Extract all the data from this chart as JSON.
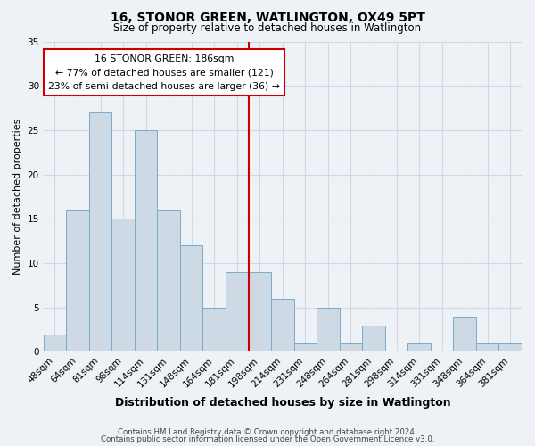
{
  "title": "16, STONOR GREEN, WATLINGTON, OX49 5PT",
  "subtitle": "Size of property relative to detached houses in Watlington",
  "xlabel": "Distribution of detached houses by size in Watlington",
  "ylabel": "Number of detached properties",
  "footer_line1": "Contains HM Land Registry data © Crown copyright and database right 2024.",
  "footer_line2": "Contains public sector information licensed under the Open Government Licence v3.0.",
  "bar_labels": [
    "48sqm",
    "64sqm",
    "81sqm",
    "98sqm",
    "114sqm",
    "131sqm",
    "148sqm",
    "164sqm",
    "181sqm",
    "198sqm",
    "214sqm",
    "231sqm",
    "248sqm",
    "264sqm",
    "281sqm",
    "298sqm",
    "314sqm",
    "331sqm",
    "348sqm",
    "364sqm",
    "381sqm"
  ],
  "bar_values": [
    2,
    16,
    27,
    15,
    25,
    16,
    12,
    5,
    9,
    9,
    6,
    1,
    5,
    1,
    3,
    0,
    1,
    0,
    4,
    1,
    1
  ],
  "bar_color": "#cdd9e5",
  "bar_edge_color": "#7aaac8",
  "ylim": [
    0,
    35
  ],
  "yticks": [
    0,
    5,
    10,
    15,
    20,
    25,
    30,
    35
  ],
  "property_line_x": 8.5,
  "property_line_color": "#cc0000",
  "annotation_box_text": "16 STONOR GREEN: 186sqm\n← 77% of detached houses are smaller (121)\n23% of semi-detached houses are larger (36) →",
  "annotation_box_edge_color": "#cc0000",
  "annotation_box_bg": "#ffffff",
  "grid_color": "#d0d8e4",
  "background_color": "#eef2f7",
  "title_fontsize": 10,
  "subtitle_fontsize": 8.5,
  "ylabel_fontsize": 8,
  "xlabel_fontsize": 9,
  "tick_labelsize": 7.5
}
